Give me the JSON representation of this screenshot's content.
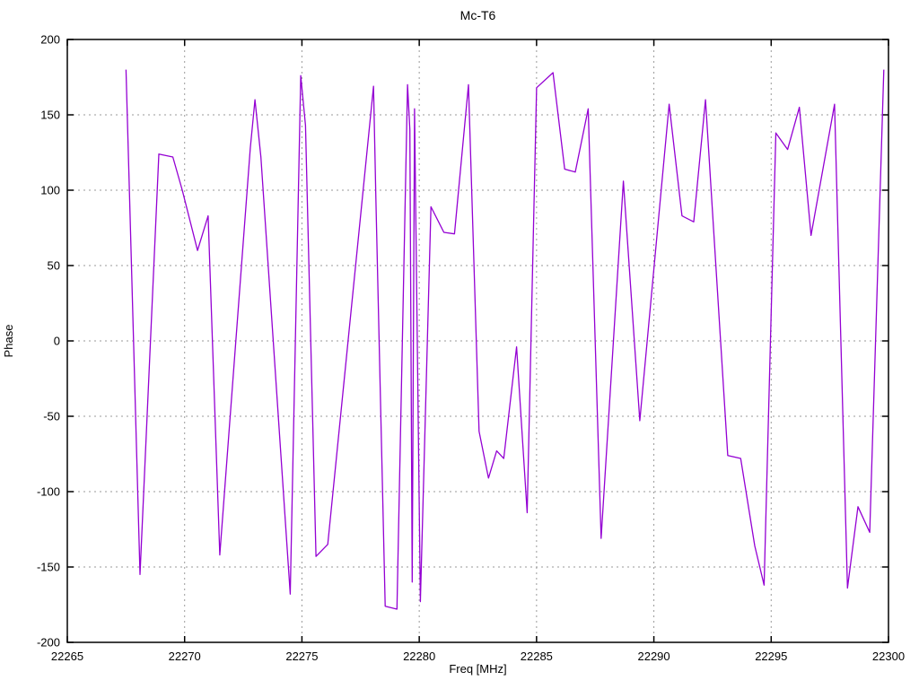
{
  "title": "Mc-T6",
  "chart_data": {
    "type": "line",
    "title": "Mc-T6",
    "xlabel": "Freq [MHz]",
    "ylabel": "Phase",
    "xlim": [
      22265,
      22300
    ],
    "ylim": [
      -200,
      200
    ],
    "x_ticks": [
      22265,
      22270,
      22275,
      22280,
      22285,
      22290,
      22295,
      22300
    ],
    "y_ticks": [
      -200,
      -150,
      -100,
      -50,
      0,
      50,
      100,
      150,
      200
    ],
    "grid": true,
    "legend_position": "none",
    "colors": {
      "line": "#9400d3",
      "grid": "#9a9a9a",
      "border": "#000000",
      "background": "#ffffff",
      "text": "#000000"
    },
    "series": [
      {
        "name": "Phase",
        "points": [
          [
            22267.5,
            180
          ],
          [
            22267.65,
            97
          ],
          [
            22268.1,
            -155
          ],
          [
            22268.9,
            124
          ],
          [
            22269.5,
            122
          ],
          [
            22269.9,
            100
          ],
          [
            22270.55,
            60
          ],
          [
            22271.0,
            83
          ],
          [
            22271.5,
            -142
          ],
          [
            22272.8,
            128
          ],
          [
            22273.0,
            160
          ],
          [
            22273.25,
            122
          ],
          [
            22274.5,
            -168
          ],
          [
            22274.95,
            176
          ],
          [
            22275.15,
            143
          ],
          [
            22275.6,
            -143
          ],
          [
            22276.1,
            -135
          ],
          [
            22278.05,
            169
          ],
          [
            22278.15,
            95
          ],
          [
            22278.55,
            -176
          ],
          [
            22279.05,
            -178
          ],
          [
            22279.5,
            170
          ],
          [
            22279.6,
            140
          ],
          [
            22279.7,
            -160
          ],
          [
            22279.8,
            154
          ],
          [
            22280.05,
            -173
          ],
          [
            22280.5,
            89
          ],
          [
            22281.05,
            72
          ],
          [
            22281.5,
            71
          ],
          [
            22282.1,
            170
          ],
          [
            22282.55,
            -60
          ],
          [
            22282.95,
            -91
          ],
          [
            22283.3,
            -73
          ],
          [
            22283.6,
            -78
          ],
          [
            22284.15,
            -4
          ],
          [
            22284.6,
            -114
          ],
          [
            22285.0,
            168
          ],
          [
            22285.7,
            178
          ],
          [
            22286.2,
            114
          ],
          [
            22286.65,
            112
          ],
          [
            22287.2,
            154
          ],
          [
            22287.75,
            -131
          ],
          [
            22288.7,
            106
          ],
          [
            22289.4,
            -53
          ],
          [
            22290.65,
            157
          ],
          [
            22291.2,
            83
          ],
          [
            22291.7,
            79
          ],
          [
            22292.2,
            160
          ],
          [
            22293.15,
            -76
          ],
          [
            22293.7,
            -78
          ],
          [
            22294.3,
            -136
          ],
          [
            22294.7,
            -162
          ],
          [
            22295.2,
            138
          ],
          [
            22295.7,
            127
          ],
          [
            22296.2,
            155
          ],
          [
            22296.7,
            70
          ],
          [
            22297.7,
            157
          ],
          [
            22298.25,
            -164
          ],
          [
            22298.7,
            -110
          ],
          [
            22299.2,
            -127
          ],
          [
            22299.8,
            180
          ]
        ]
      }
    ]
  }
}
